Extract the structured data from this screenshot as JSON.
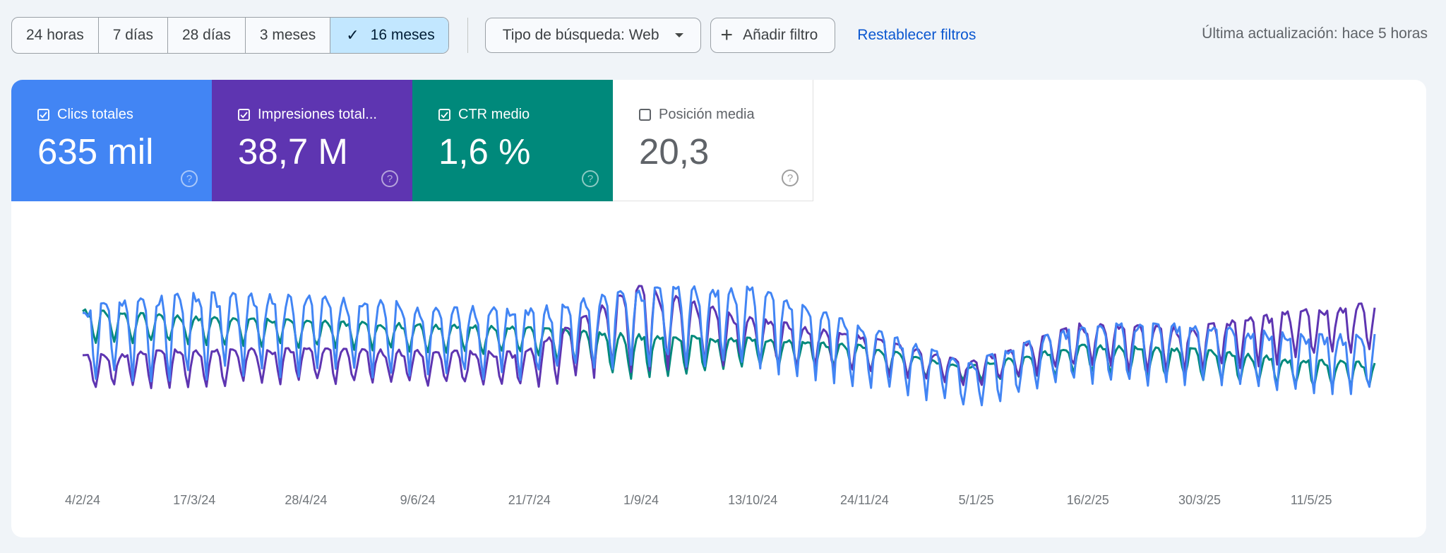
{
  "toolbar": {
    "date_ranges": [
      {
        "label": "24 horas",
        "selected": false
      },
      {
        "label": "7 días",
        "selected": false
      },
      {
        "label": "28 días",
        "selected": false
      },
      {
        "label": "3 meses",
        "selected": false
      },
      {
        "label": "16 meses",
        "selected": true
      }
    ],
    "check_icon": "✓",
    "search_type_label": "Tipo de búsqueda: Web",
    "add_filter_label": "Añadir filtro",
    "add_filter_icon": "+",
    "reset_filters_label": "Restablecer filtros",
    "last_updated": "Última actualización: hace 5 horas"
  },
  "metrics": [
    {
      "key": "clicks",
      "label": "Clics totales",
      "value": "635 mil",
      "checked": true,
      "color": "#4285f4",
      "help_icon": "?"
    },
    {
      "key": "impressions",
      "label": "Impresiones total...",
      "value": "38,7 M",
      "checked": true,
      "color": "#5e35b1",
      "help_icon": "?"
    },
    {
      "key": "ctr",
      "label": "CTR medio",
      "value": "1,6 %",
      "checked": true,
      "color": "#00897b",
      "help_icon": "?"
    },
    {
      "key": "position",
      "label": "Posición media",
      "value": "20,3",
      "checked": false,
      "color": "#ffffff",
      "help_icon": "?"
    }
  ],
  "chart_data": {
    "type": "line",
    "title": "",
    "xlabel": "",
    "ylabel": "",
    "grid": false,
    "legend": "metric cards above chart",
    "x_ticks": [
      "4/2/24",
      "17/3/24",
      "28/4/24",
      "9/6/24",
      "21/7/24",
      "1/9/24",
      "13/10/24",
      "24/11/24",
      "5/1/25",
      "16/2/25",
      "30/3/25",
      "11/5/25"
    ],
    "x_range": [
      "4/2/24",
      "~8/6/25"
    ],
    "note": "Daily values with strong weekly seasonality; y axes unlabeled (normalized). Values given as relative level 0-100 of plot height, envelope [weekly low, weekly high] sampled every ~6 weeks at tick dates plus end.",
    "envelope_x": [
      "4/2/24",
      "17/3/24",
      "28/4/24",
      "9/6/24",
      "21/7/24",
      "1/9/24",
      "13/10/24",
      "24/11/24",
      "5/1/25",
      "16/2/25",
      "30/3/25",
      "11/5/25",
      "8/6/25"
    ],
    "series": [
      {
        "name": "Clics totales",
        "color": "#4285f4",
        "low": [
          28,
          30,
          32,
          31,
          30,
          38,
          36,
          26,
          14,
          28,
          26,
          22,
          22
        ],
        "high": [
          72,
          80,
          78,
          74,
          70,
          82,
          84,
          62,
          40,
          62,
          62,
          56,
          56
        ]
      },
      {
        "name": "Impresiones totales",
        "color": "#5e35b1",
        "low": [
          24,
          26,
          28,
          27,
          25,
          35,
          38,
          34,
          26,
          36,
          34,
          40,
          48
        ],
        "high": [
          44,
          48,
          48,
          47,
          46,
          84,
          66,
          56,
          40,
          62,
          60,
          70,
          74
        ]
      },
      {
        "name": "CTR medio",
        "color": "#00897b",
        "low": [
          50,
          50,
          48,
          46,
          44,
          30,
          38,
          36,
          28,
          34,
          30,
          26,
          26
        ],
        "high": [
          70,
          66,
          64,
          62,
          60,
          56,
          54,
          50,
          38,
          50,
          48,
          42,
          40
        ]
      }
    ]
  }
}
